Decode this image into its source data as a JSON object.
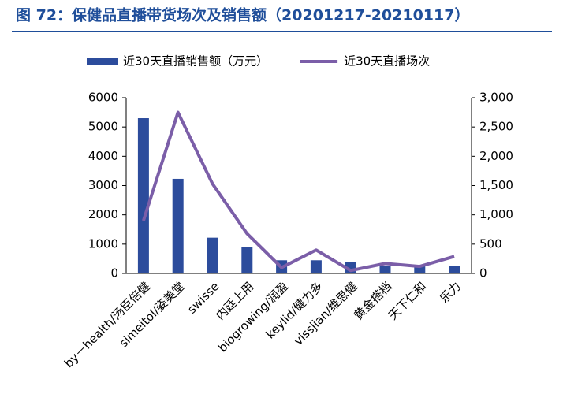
{
  "chart_data": {
    "type": "bar_line",
    "title": "图 72：保健品直播带货场次及销售额（20201217-20210117）",
    "categories": [
      "by－health/汤臣倍健",
      "simeitol/姿美堂",
      "swisse",
      "内廷上用",
      "biogrowing/润盈",
      "keylid/健力多",
      "vissjian/维思健",
      "黄金搭档",
      "天下仁和",
      "乐力"
    ],
    "series": [
      {
        "name": "近30天直播销售额（万元）",
        "type": "bar",
        "color": "#2c4c9c",
        "values": [
          5300,
          3230,
          1220,
          900,
          450,
          450,
          400,
          270,
          270,
          250
        ]
      },
      {
        "name": "近30天直播场次",
        "type": "line",
        "axis": "y2",
        "color": "#7b5ea8",
        "values": [
          900,
          2750,
          1530,
          680,
          100,
          400,
          50,
          170,
          120,
          290
        ]
      }
    ],
    "ylim": [
      0,
      6000
    ],
    "yticks": [
      0,
      1000,
      2000,
      3000,
      4000,
      5000,
      6000
    ],
    "y2lim": [
      0,
      3000
    ],
    "y2ticks": [
      0,
      500,
      {
        "value": 1000,
        "label": "1,000"
      },
      {
        "value": 1500,
        "label": "1,500"
      },
      {
        "value": 2000,
        "label": "2,000"
      },
      {
        "value": 2500,
        "label": "2,500"
      },
      {
        "value": 3000,
        "label": "3,000"
      }
    ],
    "legend": "top"
  }
}
